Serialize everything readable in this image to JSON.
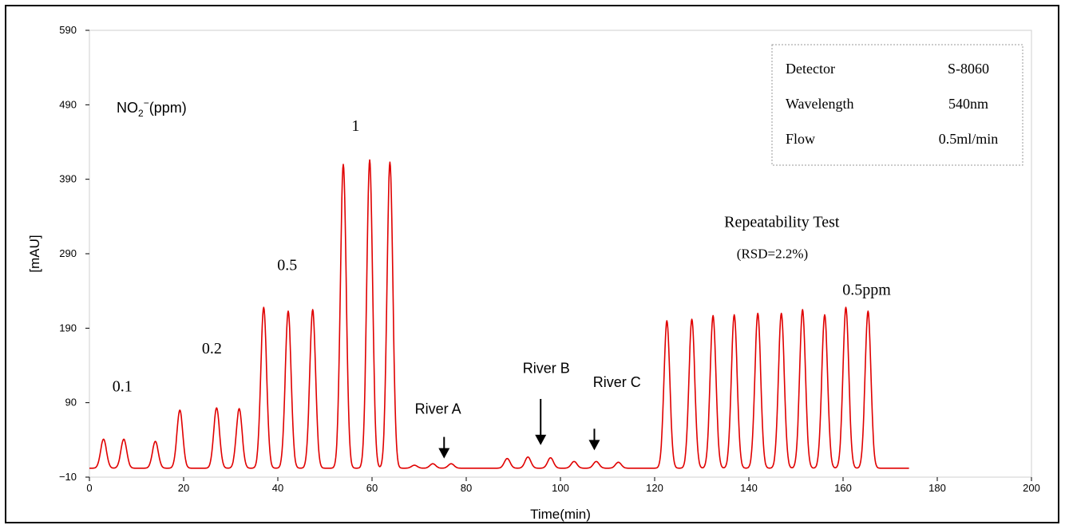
{
  "chart_data": {
    "type": "line",
    "xlabel": "Time(min)",
    "ylabel": "[mAU]",
    "xlim": [
      0,
      200
    ],
    "ylim": [
      -10,
      590
    ],
    "x_ticks": [
      "0",
      "20",
      "40",
      "60",
      "80",
      "100",
      "120",
      "140",
      "160",
      "180",
      "200"
    ],
    "y_ticks": [
      "−10",
      "90",
      "190",
      "290",
      "390",
      "490",
      "590"
    ],
    "grid": false,
    "series": [
      {
        "color": "#e00000",
        "baseline": 2,
        "trace_end_x": 174,
        "peaks": [
          {
            "x": 3.0,
            "y": 41
          },
          {
            "x": 7.3,
            "y": 41
          },
          {
            "x": 14.0,
            "y": 38
          },
          {
            "x": 19.2,
            "y": 80
          },
          {
            "x": 27.0,
            "y": 83
          },
          {
            "x": 31.8,
            "y": 82
          },
          {
            "x": 37.0,
            "y": 218
          },
          {
            "x": 42.2,
            "y": 213
          },
          {
            "x": 47.4,
            "y": 215
          },
          {
            "x": 53.9,
            "y": 410
          },
          {
            "x": 59.5,
            "y": 416
          },
          {
            "x": 63.8,
            "y": 413
          },
          {
            "x": 69.0,
            "y": 6
          },
          {
            "x": 72.9,
            "y": 8
          },
          {
            "x": 76.8,
            "y": 8
          },
          {
            "x": 88.7,
            "y": 15
          },
          {
            "x": 93.1,
            "y": 17
          },
          {
            "x": 97.9,
            "y": 16
          },
          {
            "x": 102.9,
            "y": 11
          },
          {
            "x": 107.6,
            "y": 11
          },
          {
            "x": 112.3,
            "y": 10
          },
          {
            "x": 122.6,
            "y": 200
          },
          {
            "x": 127.9,
            "y": 202
          },
          {
            "x": 132.4,
            "y": 207
          },
          {
            "x": 136.9,
            "y": 208
          },
          {
            "x": 141.9,
            "y": 210
          },
          {
            "x": 146.9,
            "y": 210
          },
          {
            "x": 151.4,
            "y": 215
          },
          {
            "x": 156.1,
            "y": 208
          },
          {
            "x": 160.6,
            "y": 218
          },
          {
            "x": 165.3,
            "y": 213
          }
        ]
      }
    ],
    "annotations": [
      {
        "text": "0.1",
        "x": 7,
        "y": 105
      },
      {
        "text": "0.2",
        "x": 26,
        "y": 156
      },
      {
        "text": "0.5",
        "x": 42,
        "y": 268
      },
      {
        "text": "1",
        "x": 56.5,
        "y": 455
      },
      {
        "text": "River A",
        "x": 74,
        "y": 75
      },
      {
        "text": "River B",
        "x": 97,
        "y": 130
      },
      {
        "text": "River C",
        "x": 112,
        "y": 111
      },
      {
        "text": "Repeatability Test",
        "x": 147,
        "y": 326
      },
      {
        "text": "(RSD=2.2%)",
        "x": 145,
        "y": 284
      },
      {
        "text": "0.5ppm",
        "x": 165,
        "y": 235
      }
    ],
    "arrows": [
      {
        "x": 75.3,
        "y_top": 44,
        "y_tip": 15
      },
      {
        "x": 95.8,
        "y_top": 95,
        "y_tip": 33
      },
      {
        "x": 107.2,
        "y_top": 55,
        "y_tip": 26
      }
    ],
    "concentration_label": {
      "base": "NO",
      "sub": "2",
      "sup": "−",
      "suffix": "(ppm)"
    },
    "info_box": [
      {
        "label": "Detector",
        "value": "S-8060"
      },
      {
        "label": "Wavelength",
        "value": "540nm"
      },
      {
        "label": "Flow",
        "value": "0.5ml/min"
      }
    ]
  }
}
